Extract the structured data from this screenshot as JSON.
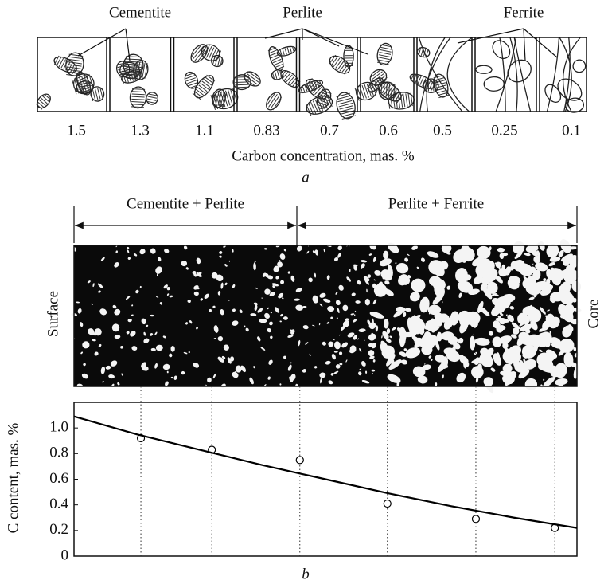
{
  "figure_a": {
    "phase_labels": [
      "Cementite",
      "Perlite",
      "Ferrite"
    ],
    "concentrations": [
      1.5,
      1.3,
      1.1,
      0.83,
      0.7,
      0.6,
      0.5,
      0.25,
      0.1
    ],
    "axis_label": "Carbon concentration, mas. %",
    "caption": "a"
  },
  "figure_b": {
    "regions": [
      "Cementite + Perlite",
      "Perlite + Ferrite"
    ],
    "left_label": "Surface",
    "right_label": "Core",
    "caption": "b"
  },
  "chart_data": {
    "type": "scatter",
    "ylabel": "C content, mas. %",
    "xlim": [
      0,
      1
    ],
    "ylim": [
      0,
      1.2
    ],
    "yticks": [
      {
        "value": 1.0,
        "label": "1.0"
      },
      0.8,
      0.6,
      0.4,
      0.2,
      0
    ],
    "series": [
      {
        "style": "markers",
        "color": "#000000",
        "x": [
          0.133,
          0.274,
          0.449,
          0.623,
          0.799,
          0.956
        ],
        "values": [
          0.92,
          0.83,
          0.75,
          0.41,
          0.29,
          0.22
        ]
      },
      {
        "style": "line",
        "color": "#000000",
        "x": [
          0,
          0.125,
          0.25,
          0.375,
          0.5,
          0.625,
          0.75,
          0.875,
          1
        ],
        "values": [
          1.09,
          0.95,
          0.83,
          0.71,
          0.6,
          0.49,
          0.39,
          0.3,
          0.22
        ]
      }
    ]
  }
}
